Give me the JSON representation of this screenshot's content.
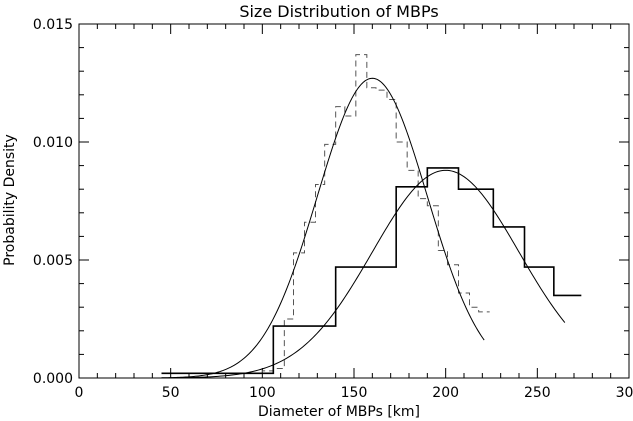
{
  "chart_data": {
    "type": "line",
    "title": "Size Distribution of MBPs",
    "xlabel": "Diameter of MBPs [km]",
    "ylabel": "Probability Density",
    "xlim": [
      0,
      300
    ],
    "ylim": [
      0,
      0.015
    ],
    "x_ticks": [
      0,
      50,
      100,
      150,
      200,
      250,
      300
    ],
    "y_ticks": [
      0.0,
      0.005,
      0.01,
      0.015
    ],
    "x_tick_labels": [
      "0",
      "50",
      "100",
      "150",
      "200",
      "250",
      "300"
    ],
    "y_tick_labels": [
      "0.000",
      "0.005",
      "0.010",
      "0.015"
    ],
    "grid": false,
    "legend": "none",
    "series": [
      {
        "style": "dashed-step",
        "color": "#555555",
        "x": [
          45,
          90,
          95,
          100,
          106,
          112,
          117,
          123,
          129,
          134,
          140,
          145,
          151,
          157,
          162,
          168,
          173,
          179,
          185,
          190,
          196,
          201,
          207,
          213,
          218,
          224
        ],
        "y": [
          0.0002,
          0.0002,
          0.0002,
          0.0003,
          0.0004,
          0.0025,
          0.0053,
          0.0066,
          0.0082,
          0.0099,
          0.0115,
          0.0111,
          0.0137,
          0.0123,
          0.0122,
          0.0118,
          0.01,
          0.0088,
          0.0076,
          0.0073,
          0.0054,
          0.0048,
          0.0036,
          0.003,
          0.0028,
          0.0028
        ]
      },
      {
        "style": "solid-step",
        "color": "#000000",
        "x": [
          45,
          106,
          140,
          173,
          190,
          207,
          226,
          243,
          259,
          274
        ],
        "y": [
          0.0002,
          0.0022,
          0.0047,
          0.0081,
          0.0089,
          0.008,
          0.0064,
          0.0047,
          0.0035,
          0.0035
        ]
      },
      {
        "style": "fit-curve",
        "color": "#000000",
        "mean": 160,
        "sigma": 30,
        "peak": 0.0127,
        "x_range": [
          45,
          221
        ]
      },
      {
        "style": "fit-curve",
        "color": "#000000",
        "mean": 200,
        "sigma": 40,
        "peak": 0.0088,
        "x_range": [
          45,
          265
        ]
      }
    ]
  }
}
